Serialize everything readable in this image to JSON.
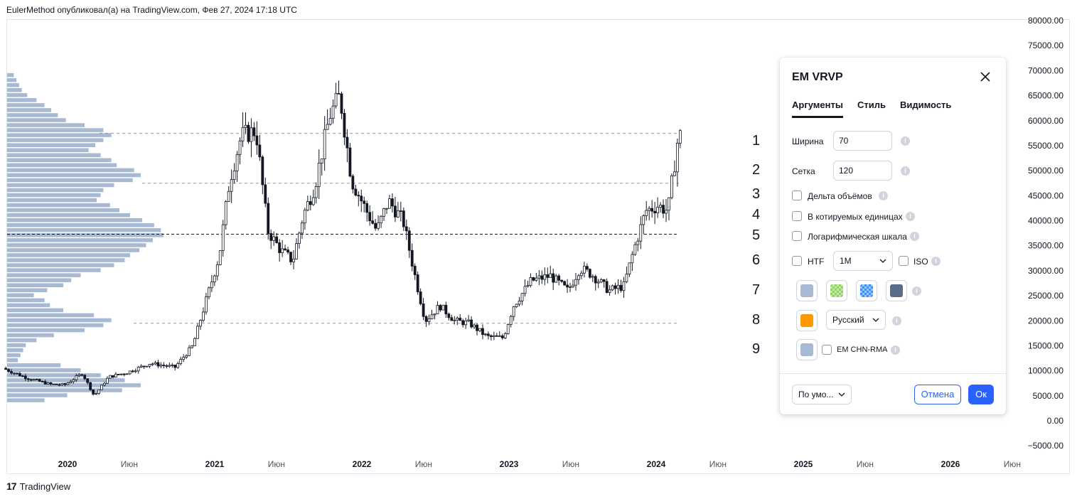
{
  "header": {
    "text": "EulerMethod опубликовал(а) на TradingView.com, Фев 27, 2024 17:18 UTC"
  },
  "footer": {
    "logo_mark": "17",
    "brand": "TradingView"
  },
  "chart_data": {
    "type": "candlestick",
    "price_axis": {
      "ticks": [
        "80000.00",
        "75000.00",
        "70000.00",
        "65000.00",
        "60000.00",
        "55000.00",
        "50000.00",
        "45000.00",
        "40000.00",
        "35000.00",
        "30000.00",
        "25000.00",
        "20000.00",
        "15000.00",
        "10000.00",
        "5000.00",
        "0.00",
        "−5000.00"
      ],
      "values": [
        80000,
        75000,
        70000,
        65000,
        60000,
        55000,
        50000,
        45000,
        40000,
        35000,
        30000,
        25000,
        20000,
        15000,
        10000,
        5000,
        0,
        -5000
      ]
    },
    "time_axis": {
      "ticks": [
        {
          "label": "2020",
          "t": 2020.0,
          "bold": true
        },
        {
          "label": "Июн",
          "t": 2020.42,
          "bold": false
        },
        {
          "label": "2021",
          "t": 2021.0,
          "bold": true
        },
        {
          "label": "Июн",
          "t": 2021.42,
          "bold": false
        },
        {
          "label": "2022",
          "t": 2022.0,
          "bold": true
        },
        {
          "label": "Июн",
          "t": 2022.42,
          "bold": false
        },
        {
          "label": "2023",
          "t": 2023.0,
          "bold": true
        },
        {
          "label": "Июн",
          "t": 2023.42,
          "bold": false
        },
        {
          "label": "2024",
          "t": 2024.0,
          "bold": true
        },
        {
          "label": "Июн",
          "t": 2024.42,
          "bold": false
        },
        {
          "label": "2025",
          "t": 2025.0,
          "bold": true
        },
        {
          "label": "Июн",
          "t": 2025.42,
          "bold": false
        },
        {
          "label": "2026",
          "t": 2026.0,
          "bold": true
        },
        {
          "label": "Июн",
          "t": 2026.42,
          "bold": false
        }
      ]
    },
    "price_path": [
      [
        2019.58,
        10500
      ],
      [
        2019.75,
        8500
      ],
      [
        2019.9,
        7300
      ],
      [
        2020.0,
        7200
      ],
      [
        2020.12,
        9500
      ],
      [
        2020.2,
        5000
      ],
      [
        2020.3,
        8800
      ],
      [
        2020.42,
        9600
      ],
      [
        2020.58,
        11500
      ],
      [
        2020.75,
        10700
      ],
      [
        2020.87,
        15000
      ],
      [
        2020.95,
        23000
      ],
      [
        2021.05,
        33000
      ],
      [
        2021.12,
        48000
      ],
      [
        2021.2,
        57000
      ],
      [
        2021.3,
        58000
      ],
      [
        2021.38,
        38000
      ],
      [
        2021.47,
        34000
      ],
      [
        2021.55,
        32000
      ],
      [
        2021.62,
        41000
      ],
      [
        2021.7,
        47000
      ],
      [
        2021.8,
        61000
      ],
      [
        2021.87,
        65000
      ],
      [
        2021.95,
        48000
      ],
      [
        2022.05,
        42000
      ],
      [
        2022.12,
        38000
      ],
      [
        2022.2,
        44000
      ],
      [
        2022.3,
        40000
      ],
      [
        2022.38,
        29000
      ],
      [
        2022.45,
        20000
      ],
      [
        2022.55,
        23000
      ],
      [
        2022.65,
        20000
      ],
      [
        2022.75,
        19500
      ],
      [
        2022.87,
        16800
      ],
      [
        2022.98,
        16600
      ],
      [
        2023.05,
        23000
      ],
      [
        2023.17,
        28000
      ],
      [
        2023.3,
        29000
      ],
      [
        2023.42,
        26000
      ],
      [
        2023.5,
        30500
      ],
      [
        2023.58,
        29300
      ],
      [
        2023.7,
        26000
      ],
      [
        2023.8,
        27000
      ],
      [
        2023.87,
        34500
      ],
      [
        2023.95,
        42000
      ],
      [
        2024.03,
        43000
      ],
      [
        2024.1,
        42000
      ],
      [
        2024.17,
        57000
      ]
    ],
    "volume_profile": {
      "bins": [
        69000,
        68000,
        67000,
        66000,
        65000,
        64000,
        63000,
        62000,
        61000,
        60000,
        59000,
        58000,
        57000,
        56000,
        55000,
        54000,
        53000,
        52000,
        51000,
        50000,
        49000,
        48000,
        47000,
        46000,
        45000,
        44000,
        43000,
        42000,
        41000,
        40000,
        39000,
        38000,
        37000,
        36000,
        35000,
        34000,
        33000,
        32000,
        31000,
        30000,
        29000,
        28000,
        27000,
        26000,
        25000,
        24000,
        23000,
        22000,
        21000,
        20000,
        19000,
        18000,
        17000,
        16000,
        15000,
        14000,
        13000,
        12000,
        11000,
        10000,
        9000,
        8000,
        7000,
        6000,
        5000,
        4000
      ],
      "volumes": [
        5,
        7,
        9,
        11,
        15,
        22,
        28,
        33,
        38,
        44,
        58,
        72,
        78,
        72,
        66,
        61,
        70,
        78,
        82,
        95,
        100,
        94,
        80,
        72,
        70,
        67,
        77,
        84,
        92,
        101,
        110,
        115,
        117,
        109,
        104,
        99,
        92,
        88,
        80,
        70,
        55,
        48,
        42,
        30,
        20,
        28,
        32,
        42,
        65,
        78,
        72,
        58,
        35,
        22,
        14,
        12,
        10,
        8,
        40,
        55,
        70,
        88,
        100,
        86,
        45,
        28
      ]
    },
    "levels": [
      {
        "price": 57500,
        "style": "dashed-light"
      },
      {
        "price": 47500,
        "style": "dashed-light"
      },
      {
        "price": 37300,
        "style": "dashed-dark"
      },
      {
        "price": 19500,
        "style": "dashed-light"
      }
    ]
  },
  "annotations": [
    "1",
    "2",
    "3",
    "4",
    "5",
    "6",
    "7",
    "8",
    "9"
  ],
  "dialog": {
    "title": "EM VRVP",
    "tabs": [
      {
        "label": "Аргументы",
        "active": true
      },
      {
        "label": "Стиль",
        "active": false
      },
      {
        "label": "Видимость",
        "active": false
      }
    ],
    "width": {
      "label": "Ширина",
      "value": "70"
    },
    "grid": {
      "label": "Сетка",
      "value": "120"
    },
    "delta_volume": {
      "label": "Дельта объёмов",
      "checked": false
    },
    "quote_units": {
      "label": "В котируемых единицах",
      "checked": false
    },
    "log_scale": {
      "label": "Логарифмическая шкала",
      "checked": false
    },
    "htf": {
      "label": "HTF",
      "checked": false
    },
    "htf_select": "1M",
    "iso": {
      "label": "ISO",
      "checked": false
    },
    "colors": [
      "#a8b9d3",
      "#8fd16a",
      "#3d8bfd",
      "#5b6b8a"
    ],
    "color_patterns": [
      "solid",
      "checker",
      "checker",
      "solid"
    ],
    "accent_color": "#ff9800",
    "language_select": "Русский",
    "chn_color": "#a8b9d3",
    "chn": {
      "label": "EM CHN-RMA",
      "checked": false
    },
    "defaults_select": "По умо...",
    "cancel_label": "Отмена",
    "ok_label": "Ок"
  }
}
